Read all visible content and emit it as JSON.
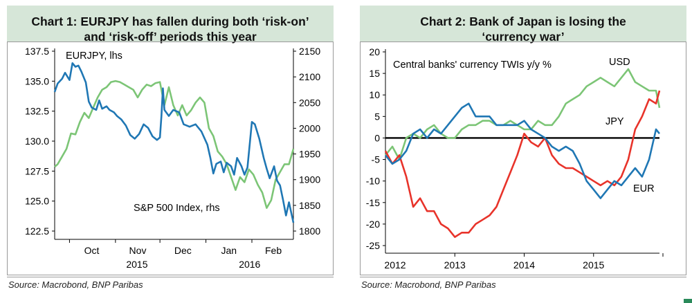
{
  "chart_data": [
    {
      "type": "line",
      "title": "Chart 1: EURJPY has fallen during both ‘risk-on’ and ‘risk-off’ periods this year",
      "title_lines": [
        "Chart 1: EURJPY has fallen during both ‘risk-on’",
        "and ‘risk-off’ periods this year"
      ],
      "source": "Source: Macrobond, BNP Paribas",
      "x_tick_labels": [
        "Oct",
        "Nov",
        "Dec",
        "Jan",
        "Feb"
      ],
      "x_year_labels": [
        "2015",
        "2016"
      ],
      "x_range": [
        "2015-09-21",
        "2016-02-29"
      ],
      "y_left": {
        "min": 122.5,
        "max": 137.5,
        "ticks": [
          "122.5",
          "125.0",
          "127.5",
          "130.0",
          "132.5",
          "135.0",
          "137.5"
        ]
      },
      "y_right": {
        "min": 1800,
        "max": 2150,
        "ticks": [
          "1800",
          "1850",
          "1900",
          "1950",
          "2000",
          "2050",
          "2100",
          "2150"
        ]
      },
      "grid": false,
      "colors": {
        "eurjpy": "#1f77b4",
        "sp500": "#7cc576"
      },
      "series": [
        {
          "name": "EURJPY, lhs",
          "axis": "left",
          "x": [
            "2015-09-21",
            "2015-09-23",
            "2015-09-26",
            "2015-09-28",
            "2015-10-01",
            "2015-10-03",
            "2015-10-05",
            "2015-10-07",
            "2015-10-09",
            "2015-10-12",
            "2015-10-14",
            "2015-10-16",
            "2015-10-19",
            "2015-10-21",
            "2015-10-23",
            "2015-10-26",
            "2015-10-28",
            "2015-10-31",
            "2015-11-02",
            "2015-11-05",
            "2015-11-08",
            "2015-11-11",
            "2015-11-14",
            "2015-11-17",
            "2015-11-20",
            "2015-11-23",
            "2015-11-26",
            "2015-11-29",
            "2015-12-01",
            "2015-12-02",
            "2015-12-03",
            "2015-12-04",
            "2015-12-07",
            "2015-12-10",
            "2015-12-14",
            "2015-12-17",
            "2015-12-21",
            "2015-12-25",
            "2015-12-29",
            "2016-01-02",
            "2016-01-04",
            "2016-01-06",
            "2016-01-08",
            "2016-01-11",
            "2016-01-13",
            "2016-01-15",
            "2016-01-18",
            "2016-01-20",
            "2016-01-22",
            "2016-01-25",
            "2016-01-27",
            "2016-01-29",
            "2016-02-01",
            "2016-02-03",
            "2016-02-06",
            "2016-02-09",
            "2016-02-11",
            "2016-02-13",
            "2016-02-16",
            "2016-02-18",
            "2016-02-20",
            "2016-02-22",
            "2016-02-24",
            "2016-02-26",
            "2016-02-29"
          ],
          "values": [
            134.1,
            134.8,
            135.2,
            135.7,
            135.1,
            136.5,
            136.2,
            136.3,
            135.8,
            134.9,
            133.3,
            132.8,
            132.6,
            133.4,
            132.7,
            132.9,
            132.6,
            132.4,
            132.1,
            131.8,
            131.3,
            130.5,
            130.2,
            130.6,
            131.4,
            131.1,
            130.4,
            130.1,
            130.3,
            132.1,
            134.4,
            132.6,
            132.1,
            132.6,
            132.4,
            131.4,
            131.2,
            131.4,
            130.8,
            129.7,
            128.6,
            127.3,
            128.1,
            128.3,
            127.4,
            128.2,
            127.9,
            127.2,
            128.6,
            127.9,
            127.2,
            127.8,
            131.6,
            131.4,
            130.2,
            128.6,
            127.7,
            126.9,
            127.9,
            126.7,
            126.3,
            125.1,
            123.8,
            124.9,
            123.2
          ]
        },
        {
          "name": "S&P 500 Index, rhs",
          "axis": "right",
          "x": [
            "2015-09-21",
            "2015-09-23",
            "2015-09-26",
            "2015-09-29",
            "2015-10-02",
            "2015-10-05",
            "2015-10-08",
            "2015-10-11",
            "2015-10-14",
            "2015-10-17",
            "2015-10-20",
            "2015-10-23",
            "2015-10-26",
            "2015-10-29",
            "2015-11-01",
            "2015-11-04",
            "2015-11-07",
            "2015-11-10",
            "2015-11-13",
            "2015-11-16",
            "2015-11-19",
            "2015-11-22",
            "2015-11-25",
            "2015-11-28",
            "2015-12-01",
            "2015-12-04",
            "2015-12-07",
            "2015-12-10",
            "2015-12-13",
            "2015-12-16",
            "2015-12-19",
            "2015-12-22",
            "2015-12-25",
            "2015-12-28",
            "2015-12-31",
            "2016-01-03",
            "2016-01-06",
            "2016-01-09",
            "2016-01-12",
            "2016-01-15",
            "2016-01-18",
            "2016-01-21",
            "2016-01-24",
            "2016-01-27",
            "2016-01-30",
            "2016-02-02",
            "2016-02-05",
            "2016-02-08",
            "2016-02-11",
            "2016-02-14",
            "2016-02-17",
            "2016-02-20",
            "2016-02-23",
            "2016-02-26",
            "2016-02-29"
          ],
          "values": [
            1925,
            1930,
            1945,
            1960,
            1990,
            1988,
            2012,
            2030,
            2020,
            2040,
            2060,
            2075,
            2080,
            2090,
            2092,
            2090,
            2085,
            2080,
            2075,
            2060,
            2075,
            2085,
            2082,
            2088,
            2090,
            2045,
            2080,
            2045,
            2025,
            2045,
            2025,
            2035,
            2050,
            2060,
            2050,
            2000,
            1985,
            1955,
            1945,
            1930,
            1905,
            1880,
            1905,
            1895,
            1920,
            1910,
            1890,
            1875,
            1845,
            1860,
            1900,
            1915,
            1930,
            1930,
            1960
          ]
        }
      ],
      "annotations": [
        "EURJPY, lhs",
        "S&P 500 Index, rhs"
      ]
    },
    {
      "type": "line",
      "title": "Chart 2: Bank of Japan is losing the ‘currency war’",
      "title_lines": [
        "Chart 2: Bank of Japan is losing the",
        "‘currency war’"
      ],
      "source": "Source: Macrobond, BNP Paribas",
      "subtitle": "Central banks' currency TWIs y/y %",
      "x_tick_labels": [
        "2012",
        "2013",
        "2014",
        "2015"
      ],
      "x_range": [
        2012.0,
        2015.95
      ],
      "y": {
        "min": -25,
        "max": 20,
        "ticks": [
          "-25",
          "-20",
          "-15",
          "-10",
          "-5",
          "0",
          "5",
          "10",
          "15",
          "20"
        ]
      },
      "zero_line": true,
      "grid": false,
      "colors": {
        "usd": "#7cc576",
        "jpy": "#e8332a",
        "eur": "#1f77b4",
        "zero": "#000000"
      },
      "series": [
        {
          "name": "USD",
          "x": [
            2012.0,
            2012.1,
            2012.2,
            2012.3,
            2012.4,
            2012.5,
            2012.6,
            2012.7,
            2012.8,
            2012.9,
            2013.0,
            2013.1,
            2013.2,
            2013.3,
            2013.4,
            2013.5,
            2013.6,
            2013.7,
            2013.8,
            2013.9,
            2014.0,
            2014.1,
            2014.2,
            2014.3,
            2014.4,
            2014.5,
            2014.6,
            2014.7,
            2014.8,
            2014.9,
            2015.0,
            2015.1,
            2015.2,
            2015.3,
            2015.4,
            2015.5,
            2015.6,
            2015.7,
            2015.8,
            2015.9,
            2015.95
          ],
          "values": [
            -4,
            -2,
            -5,
            0,
            1,
            0,
            2,
            3,
            1,
            0,
            0,
            2,
            3,
            3,
            4,
            4,
            3,
            3,
            4,
            3,
            2,
            2,
            4,
            3,
            3,
            5,
            8,
            9,
            10,
            12,
            13,
            14,
            13,
            12,
            14,
            16,
            13,
            12,
            11,
            11,
            7
          ]
        },
        {
          "name": "JPY",
          "x": [
            2012.0,
            2012.1,
            2012.2,
            2012.3,
            2012.4,
            2012.5,
            2012.6,
            2012.7,
            2012.8,
            2012.9,
            2013.0,
            2013.1,
            2013.2,
            2013.3,
            2013.4,
            2013.5,
            2013.6,
            2013.7,
            2013.8,
            2013.9,
            2014.0,
            2014.1,
            2014.2,
            2014.3,
            2014.4,
            2014.5,
            2014.6,
            2014.7,
            2014.8,
            2014.9,
            2015.0,
            2015.1,
            2015.2,
            2015.3,
            2015.4,
            2015.5,
            2015.6,
            2015.7,
            2015.8,
            2015.9,
            2015.95
          ],
          "values": [
            -3,
            -6,
            -4,
            -9,
            -16,
            -14,
            -17,
            -17,
            -20,
            -21,
            -23,
            -22,
            -22,
            -20,
            -19,
            -18,
            -16,
            -12,
            -8,
            -4,
            1,
            -1,
            -2,
            0,
            -4,
            -6,
            -7,
            -7,
            -8,
            -9,
            -10,
            -11,
            -10,
            -11,
            -9,
            -5,
            2,
            5,
            9,
            8,
            11
          ]
        },
        {
          "name": "EUR",
          "x": [
            2012.0,
            2012.1,
            2012.2,
            2012.3,
            2012.4,
            2012.5,
            2012.6,
            2012.7,
            2012.8,
            2012.9,
            2013.0,
            2013.1,
            2013.2,
            2013.3,
            2013.4,
            2013.5,
            2013.6,
            2013.7,
            2013.8,
            2013.9,
            2014.0,
            2014.1,
            2014.2,
            2014.3,
            2014.4,
            2014.5,
            2014.6,
            2014.7,
            2014.8,
            2014.9,
            2015.0,
            2015.1,
            2015.2,
            2015.3,
            2015.4,
            2015.5,
            2015.6,
            2015.7,
            2015.8,
            2015.9,
            2015.95
          ],
          "values": [
            -4,
            -6,
            -5,
            -3,
            1,
            2,
            0,
            2,
            1,
            3,
            5,
            7,
            8,
            5,
            5,
            5,
            3,
            3,
            3,
            3,
            4,
            2,
            1,
            0,
            -2,
            -3,
            -2,
            -3,
            -6,
            -10,
            -12,
            -14,
            -12,
            -10,
            -11,
            -9,
            -7,
            -9,
            -5,
            2,
            1
          ]
        }
      ],
      "annotations": [
        "USD",
        "JPY",
        "EUR"
      ]
    }
  ]
}
